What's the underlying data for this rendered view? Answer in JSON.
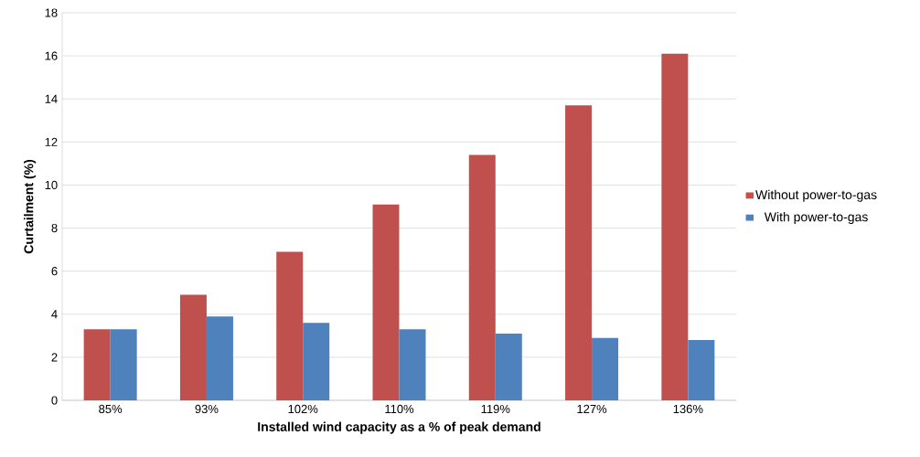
{
  "chart_data": {
    "type": "bar",
    "xlabel": "Installed wind capacity as a % of peak demand",
    "ylabel": "Curtailment (%)",
    "categories": [
      "85%",
      "93%",
      "102%",
      "110%",
      "119%",
      "127%",
      "136%"
    ],
    "series": [
      {
        "name": "Without power-to-gas",
        "color": "#c0504d",
        "values": [
          3.3,
          4.9,
          6.9,
          9.1,
          11.4,
          13.7,
          16.1
        ]
      },
      {
        "name": "With power-to-gas",
        "color": "#4f81bd",
        "values": [
          3.3,
          3.9,
          3.6,
          3.3,
          3.1,
          2.9,
          2.8
        ]
      }
    ],
    "ylim": [
      0,
      18
    ],
    "yticks": [
      0,
      2,
      4,
      6,
      8,
      10,
      12,
      14,
      16,
      18
    ],
    "grid": "y",
    "legend": "right"
  }
}
